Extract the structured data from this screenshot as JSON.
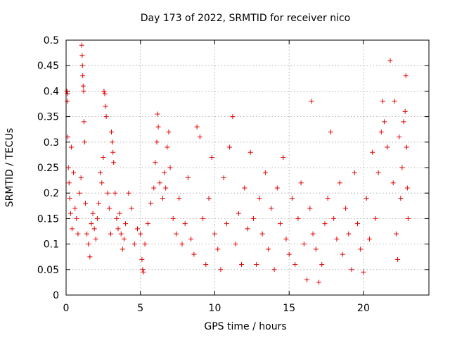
{
  "chart_data": {
    "type": "scatter",
    "title": "Day 173 of 2022, SRMTID for receiver nico",
    "xlabel": "GPS time / hours",
    "ylabel": "SRMTID / TECUs",
    "xlim": [
      0,
      24.4
    ],
    "ylim": [
      0,
      0.5
    ],
    "x_ticks": [
      0,
      5,
      10,
      15,
      20
    ],
    "x_tick_labels": [
      "0",
      "5",
      "10",
      "15",
      "20"
    ],
    "y_ticks": [
      0,
      0.05,
      0.1,
      0.15,
      0.2,
      0.25,
      0.3,
      0.35,
      0.4,
      0.45,
      0.5
    ],
    "y_tick_labels": [
      "0",
      "0.05",
      "0.1",
      "0.15",
      "0.2",
      "0.25",
      "0.3",
      "0.35",
      "0.4",
      "0.45",
      "0.5"
    ],
    "grid": true,
    "marker": "+",
    "marker_color": "#e60000",
    "series": [
      {
        "name": "SRMTID",
        "points": [
          [
            0.05,
            0.4
          ],
          [
            0.08,
            0.38
          ],
          [
            0.1,
            0.395
          ],
          [
            0.12,
            0.31
          ],
          [
            0.15,
            0.25
          ],
          [
            0.2,
            0.22
          ],
          [
            0.25,
            0.19
          ],
          [
            0.3,
            0.16
          ],
          [
            0.35,
            0.29
          ],
          [
            0.4,
            0.13
          ],
          [
            0.5,
            0.24
          ],
          [
            0.6,
            0.17
          ],
          [
            0.7,
            0.15
          ],
          [
            0.8,
            0.12
          ],
          [
            0.9,
            0.2
          ],
          [
            1.0,
            0.23
          ],
          [
            1.05,
            0.49
          ],
          [
            1.08,
            0.47
          ],
          [
            1.1,
            0.45
          ],
          [
            1.12,
            0.43
          ],
          [
            1.15,
            0.41
          ],
          [
            1.18,
            0.4
          ],
          [
            1.2,
            0.34
          ],
          [
            1.25,
            0.3
          ],
          [
            1.3,
            0.18
          ],
          [
            1.4,
            0.12
          ],
          [
            1.5,
            0.1
          ],
          [
            1.6,
            0.075
          ],
          [
            1.7,
            0.14
          ],
          [
            1.8,
            0.16
          ],
          [
            1.9,
            0.13
          ],
          [
            2.0,
            0.11
          ],
          [
            2.1,
            0.15
          ],
          [
            2.2,
            0.18
          ],
          [
            2.3,
            0.24
          ],
          [
            2.4,
            0.22
          ],
          [
            2.5,
            0.27
          ],
          [
            2.55,
            0.4
          ],
          [
            2.6,
            0.395
          ],
          [
            2.65,
            0.37
          ],
          [
            2.7,
            0.35
          ],
          [
            2.8,
            0.2
          ],
          [
            2.9,
            0.17
          ],
          [
            3.0,
            0.12
          ],
          [
            3.05,
            0.32
          ],
          [
            3.1,
            0.3
          ],
          [
            3.15,
            0.28
          ],
          [
            3.2,
            0.26
          ],
          [
            3.3,
            0.2
          ],
          [
            3.4,
            0.15
          ],
          [
            3.5,
            0.13
          ],
          [
            3.6,
            0.16
          ],
          [
            3.7,
            0.12
          ],
          [
            3.8,
            0.09
          ],
          [
            3.9,
            0.11
          ],
          [
            4.0,
            0.14
          ],
          [
            4.2,
            0.2
          ],
          [
            4.4,
            0.17
          ],
          [
            4.6,
            0.1
          ],
          [
            4.8,
            0.13
          ],
          [
            5.0,
            0.12
          ],
          [
            5.1,
            0.07
          ],
          [
            5.15,
            0.05
          ],
          [
            5.2,
            0.045
          ],
          [
            5.3,
            0.1
          ],
          [
            5.5,
            0.14
          ],
          [
            5.7,
            0.18
          ],
          [
            5.9,
            0.21
          ],
          [
            6.0,
            0.26
          ],
          [
            6.1,
            0.3
          ],
          [
            6.15,
            0.355
          ],
          [
            6.2,
            0.33
          ],
          [
            6.3,
            0.22
          ],
          [
            6.5,
            0.19
          ],
          [
            6.6,
            0.24
          ],
          [
            6.7,
            0.21
          ],
          [
            6.8,
            0.29
          ],
          [
            6.9,
            0.32
          ],
          [
            7.0,
            0.25
          ],
          [
            7.2,
            0.15
          ],
          [
            7.4,
            0.12
          ],
          [
            7.6,
            0.19
          ],
          [
            7.8,
            0.1
          ],
          [
            8.0,
            0.14
          ],
          [
            8.2,
            0.23
          ],
          [
            8.4,
            0.11
          ],
          [
            8.6,
            0.08
          ],
          [
            8.8,
            0.33
          ],
          [
            9.0,
            0.31
          ],
          [
            9.2,
            0.15
          ],
          [
            9.4,
            0.06
          ],
          [
            9.6,
            0.19
          ],
          [
            9.8,
            0.27
          ],
          [
            10.0,
            0.12
          ],
          [
            10.2,
            0.09
          ],
          [
            10.4,
            0.05
          ],
          [
            10.6,
            0.23
          ],
          [
            10.8,
            0.14
          ],
          [
            11.0,
            0.29
          ],
          [
            11.2,
            0.35
          ],
          [
            11.4,
            0.1
          ],
          [
            11.6,
            0.16
          ],
          [
            11.8,
            0.06
          ],
          [
            12.0,
            0.21
          ],
          [
            12.2,
            0.13
          ],
          [
            12.4,
            0.28
          ],
          [
            12.6,
            0.15
          ],
          [
            12.8,
            0.06
          ],
          [
            13.0,
            0.19
          ],
          [
            13.2,
            0.12
          ],
          [
            13.4,
            0.24
          ],
          [
            13.6,
            0.09
          ],
          [
            13.8,
            0.17
          ],
          [
            14.0,
            0.05
          ],
          [
            14.2,
            0.21
          ],
          [
            14.4,
            0.14
          ],
          [
            14.6,
            0.27
          ],
          [
            14.8,
            0.11
          ],
          [
            15.0,
            0.08
          ],
          [
            15.2,
            0.19
          ],
          [
            15.4,
            0.06
          ],
          [
            15.6,
            0.15
          ],
          [
            15.8,
            0.22
          ],
          [
            16.0,
            0.1
          ],
          [
            16.2,
            0.03
          ],
          [
            16.4,
            0.17
          ],
          [
            16.5,
            0.38
          ],
          [
            16.6,
            0.12
          ],
          [
            16.8,
            0.09
          ],
          [
            17.0,
            0.025
          ],
          [
            17.2,
            0.06
          ],
          [
            17.4,
            0.14
          ],
          [
            17.6,
            0.19
          ],
          [
            17.8,
            0.32
          ],
          [
            18.0,
            0.15
          ],
          [
            18.2,
            0.11
          ],
          [
            18.4,
            0.22
          ],
          [
            18.6,
            0.08
          ],
          [
            18.8,
            0.17
          ],
          [
            19.0,
            0.12
          ],
          [
            19.2,
            0.05
          ],
          [
            19.4,
            0.24
          ],
          [
            19.6,
            0.14
          ],
          [
            19.8,
            0.09
          ],
          [
            20.0,
            0.045
          ],
          [
            20.2,
            0.19
          ],
          [
            20.4,
            0.11
          ],
          [
            20.6,
            0.28
          ],
          [
            20.8,
            0.15
          ],
          [
            21.0,
            0.24
          ],
          [
            21.2,
            0.32
          ],
          [
            21.3,
            0.38
          ],
          [
            21.4,
            0.34
          ],
          [
            21.6,
            0.29
          ],
          [
            21.8,
            0.46
          ],
          [
            22.0,
            0.22
          ],
          [
            22.1,
            0.38
          ],
          [
            22.2,
            0.12
          ],
          [
            22.3,
            0.07
          ],
          [
            22.4,
            0.31
          ],
          [
            22.5,
            0.19
          ],
          [
            22.6,
            0.25
          ],
          [
            22.7,
            0.34
          ],
          [
            22.8,
            0.36
          ],
          [
            22.85,
            0.43
          ],
          [
            22.9,
            0.29
          ],
          [
            22.95,
            0.21
          ],
          [
            23.0,
            0.15
          ]
        ]
      }
    ]
  }
}
